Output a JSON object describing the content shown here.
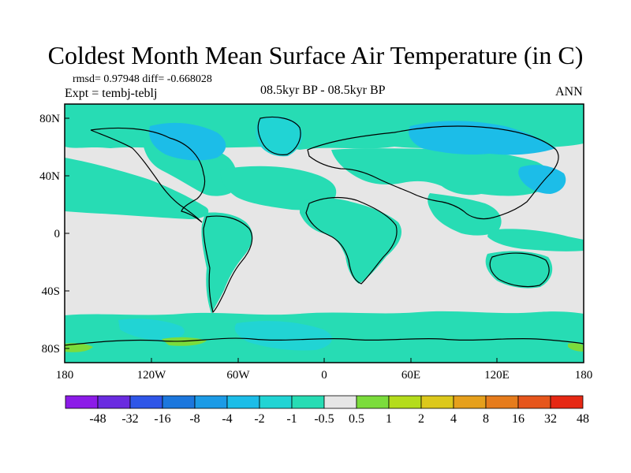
{
  "header": {
    "title": "Coldest Month Mean Surface Air Temperature (in C)",
    "stats": "rmsd= 0.97948 diff= -0.668028",
    "expt": "Expt = tembj-teblj",
    "period": "08.5kyr BP - 08.5kyr BP",
    "season": "ANN"
  },
  "axes": {
    "y_ticks": [
      "80N",
      "40N",
      "0",
      "40S",
      "80S"
    ],
    "x_ticks": [
      "180",
      "120W",
      "60W",
      "0",
      "60E",
      "120E",
      "180"
    ]
  },
  "colorbar": {
    "labels": [
      "-48",
      "-32",
      "-16",
      "-8",
      "-4",
      "-2",
      "-1",
      "-0.5",
      "0.5",
      "1",
      "2",
      "4",
      "8",
      "16",
      "32",
      "48"
    ],
    "colors": [
      "#8c1be8",
      "#6a2be0",
      "#2f56e8",
      "#1c77dd",
      "#1c9be6",
      "#1cbde8",
      "#21d4d4",
      "#27dcb4",
      "#e6e6e6",
      "#7bdc3c",
      "#b4dc1c",
      "#dcc81c",
      "#e6a01c",
      "#e67c1c",
      "#e6561c",
      "#e62814"
    ]
  },
  "palette": {
    "neutral": "#e6e6e6",
    "teal": "#27dcb4",
    "cyan": "#21d4d4",
    "blue": "#1cbde8",
    "green": "#7bdc3c",
    "coast": "#000000"
  }
}
